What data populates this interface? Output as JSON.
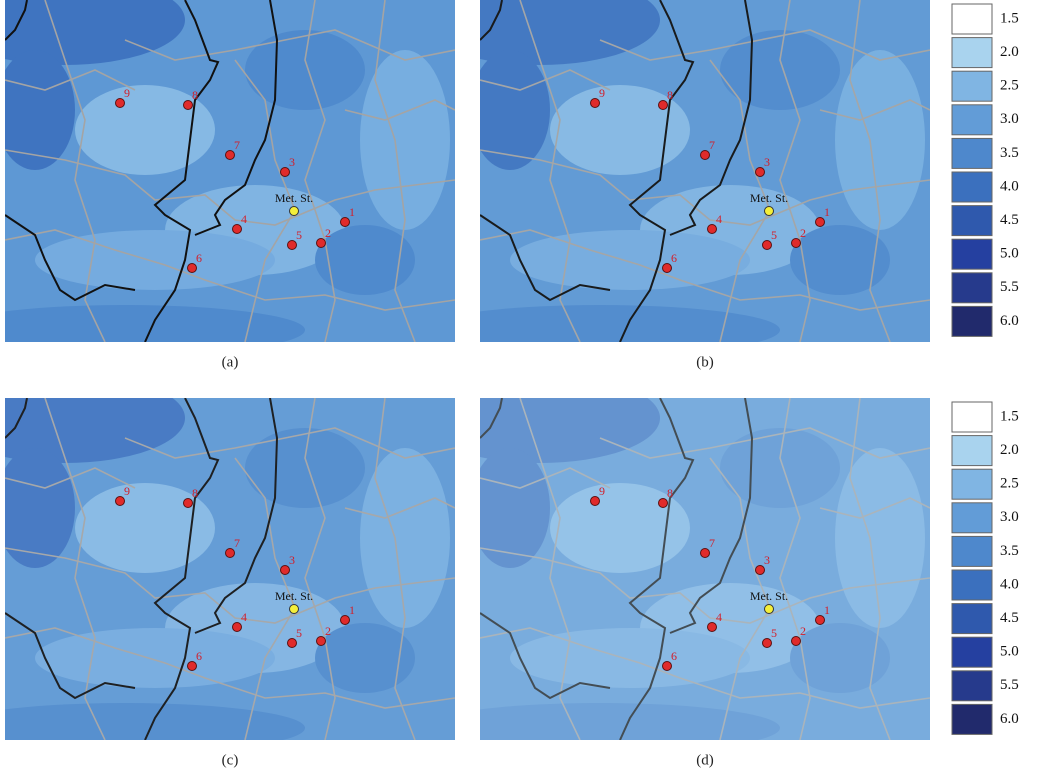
{
  "panels": [
    "(a)",
    "(b)",
    "(c)",
    "(d)"
  ],
  "stations": [
    "1",
    "2",
    "3",
    "4",
    "5",
    "6",
    "7",
    "8",
    "9"
  ],
  "met_station": "Met. St.",
  "legend": [
    {
      "label": "1.5",
      "color": "#ffffff"
    },
    {
      "label": "2.0",
      "color": "#a9d3ee"
    },
    {
      "label": "2.5",
      "color": "#80b5e3"
    },
    {
      "label": "3.0",
      "color": "#629cd7"
    },
    {
      "label": "3.5",
      "color": "#4e88cc"
    },
    {
      "label": "4.0",
      "color": "#3b70be"
    },
    {
      "label": "4.5",
      "color": "#2f59ad"
    },
    {
      "label": "5.0",
      "color": "#2540a0"
    },
    {
      "label": "5.5",
      "color": "#263a8c"
    },
    {
      "label": "6.0",
      "color": "#212a6c"
    }
  ]
}
